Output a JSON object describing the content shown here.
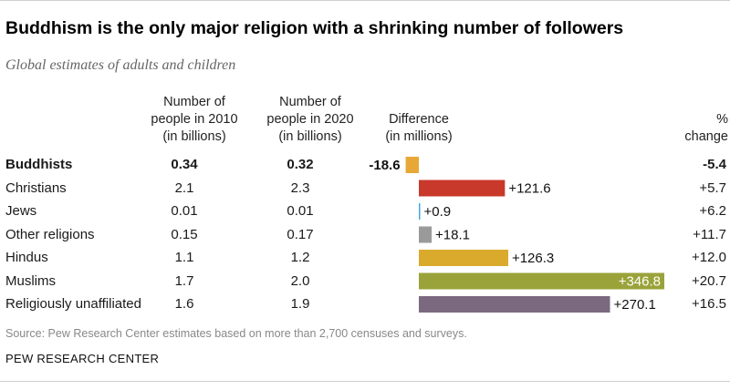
{
  "title": "Buddhism is the only major religion with a shrinking number of followers",
  "subtitle": "Global estimates of adults and children",
  "headers": {
    "col2010": "Number of\npeople in 2010\n(in billions)",
    "col2020": "Number of\npeople in 2020\n(in billions)",
    "difference": "Difference\n(in millions)",
    "pct": "%\nchange"
  },
  "source": "Source: Pew Research Center estimates based on more than 2,700 censuses and surveys.",
  "brand": "PEW RESEARCH CENTER",
  "chart_data": {
    "type": "table",
    "columns": [
      "Number of people in 2010 (in billions)",
      "Number of people in 2020 (in billions)",
      "Difference (in millions)",
      "% change"
    ],
    "rows": [
      {
        "label": "Buddhists",
        "v2010": "0.34",
        "v2020": "0.32",
        "diff": -18.6,
        "diff_label": "-18.6",
        "pct": "-5.4",
        "color": "#e8a838",
        "bold": true,
        "label_inside": false
      },
      {
        "label": "Christians",
        "v2010": "2.1",
        "v2020": "2.3",
        "diff": 121.6,
        "diff_label": "+121.6",
        "pct": "+5.7",
        "color": "#c8392b",
        "bold": false,
        "label_inside": false
      },
      {
        "label": "Jews",
        "v2010": "0.01",
        "v2020": "0.01",
        "diff": 0.9,
        "diff_label": "+0.9",
        "pct": "+6.2",
        "color": "#3fa9e0",
        "bold": false,
        "label_inside": false
      },
      {
        "label": "Other religions",
        "v2010": "0.15",
        "v2020": "0.17",
        "diff": 18.1,
        "diff_label": "+18.1",
        "pct": "+11.7",
        "color": "#9a9a9a",
        "bold": false,
        "label_inside": false
      },
      {
        "label": "Hindus",
        "v2010": "1.1",
        "v2020": "1.2",
        "diff": 126.3,
        "diff_label": "+126.3",
        "pct": "+12.0",
        "color": "#d9aa2c",
        "bold": false,
        "label_inside": false
      },
      {
        "label": "Muslims",
        "v2010": "1.7",
        "v2020": "2.0",
        "diff": 346.8,
        "diff_label": "+346.8",
        "pct": "+20.7",
        "color": "#9aa33a",
        "bold": false,
        "label_inside": true
      },
      {
        "label": "Religiously unaffiliated",
        "v2010": "1.6",
        "v2020": "1.9",
        "diff": 270.1,
        "diff_label": "+270.1",
        "pct": "+16.5",
        "color": "#7b6a7f",
        "bold": false,
        "label_inside": false
      }
    ]
  }
}
